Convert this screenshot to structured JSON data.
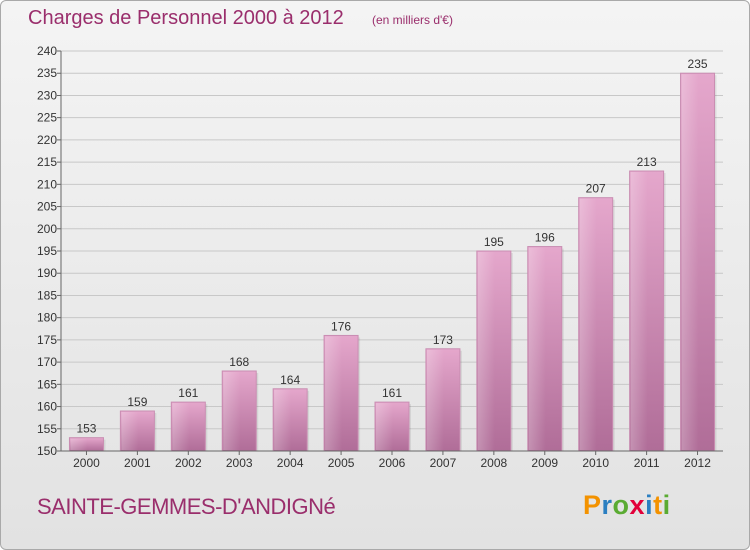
{
  "header": {
    "title": "Charges de Personnel 2000 à 2012",
    "unit_note": "(en milliers d'€)"
  },
  "footer": {
    "commune": "SAINTE-GEMMES-D'ANDIGNé",
    "logo": {
      "letters": [
        "P",
        "r",
        "o",
        "x",
        "i",
        "t",
        "i"
      ],
      "colors": [
        "#f39200",
        "#2b7fc1",
        "#5aab32",
        "#e2003a",
        "#2b7fc1",
        "#f39200",
        "#5aab32"
      ]
    }
  },
  "colors": {
    "title": "#9a2e6c",
    "bar_top": "#e5a7cc",
    "bar_bottom": "#b06d98",
    "grid": "#c8c8c8"
  },
  "chart_data": {
    "type": "bar",
    "title": "Charges de Personnel 2000 à 2012",
    "subtitle": "(en milliers d'€)",
    "xlabel": "",
    "ylabel": "",
    "categories": [
      "2000",
      "2001",
      "2002",
      "2003",
      "2004",
      "2005",
      "2006",
      "2007",
      "2008",
      "2009",
      "2010",
      "2011",
      "2012"
    ],
    "values": [
      153,
      159,
      161,
      168,
      164,
      176,
      161,
      173,
      195,
      196,
      207,
      213,
      235
    ],
    "ylim": [
      150,
      240
    ],
    "yticks": [
      150,
      155,
      160,
      165,
      170,
      175,
      180,
      185,
      190,
      195,
      200,
      205,
      210,
      215,
      220,
      225,
      230,
      235,
      240
    ],
    "grid": true,
    "legend": "none"
  }
}
